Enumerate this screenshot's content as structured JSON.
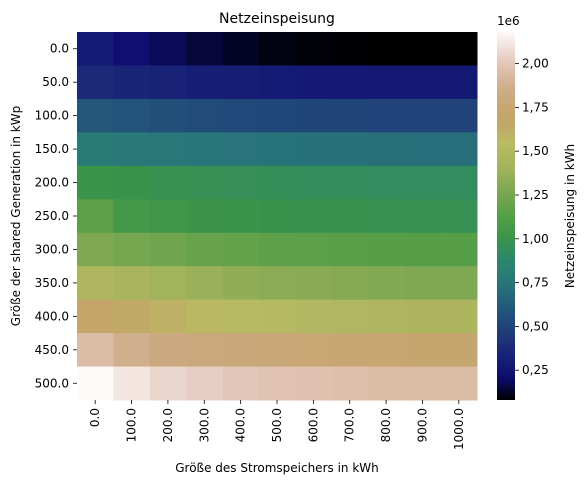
{
  "chart_data": {
    "type": "heatmap",
    "title": "Netzeinspeisung",
    "xlabel": "Größe des Stromspeichers in kWh",
    "ylabel": "Größe der shared Generation in kWp",
    "x_categories": [
      "0.0",
      "100.0",
      "200.0",
      "300.0",
      "400.0",
      "500.0",
      "600.0",
      "700.0",
      "800.0",
      "900.0",
      "1000.0"
    ],
    "y_categories": [
      "0.0",
      "50.0",
      "100.0",
      "150.0",
      "200.0",
      "250.0",
      "300.0",
      "350.0",
      "400.0",
      "450.0",
      "500.0"
    ],
    "values": [
      [
        290000,
        225000,
        180000,
        145000,
        120000,
        100000,
        90000,
        85000,
        80000,
        80000,
        80000
      ],
      [
        370000,
        345000,
        330000,
        310000,
        300000,
        290000,
        285000,
        280000,
        275000,
        275000,
        275000
      ],
      [
        600000,
        580000,
        560000,
        545000,
        530000,
        520000,
        515000,
        510000,
        505000,
        500000,
        500000
      ],
      [
        790000,
        775000,
        760000,
        750000,
        740000,
        735000,
        730000,
        725000,
        720000,
        715000,
        715000
      ],
      [
        1000000,
        990000,
        975000,
        965000,
        955000,
        950000,
        945000,
        940000,
        935000,
        930000,
        930000
      ],
      [
        1150000,
        1050000,
        1030000,
        1010000,
        1000000,
        990000,
        985000,
        980000,
        975000,
        970000,
        970000
      ],
      [
        1280000,
        1250000,
        1230000,
        1200000,
        1180000,
        1160000,
        1150000,
        1140000,
        1130000,
        1130000,
        1130000
      ],
      [
        1480000,
        1450000,
        1400000,
        1370000,
        1340000,
        1320000,
        1310000,
        1300000,
        1290000,
        1280000,
        1280000
      ],
      [
        1690000,
        1640000,
        1600000,
        1560000,
        1540000,
        1520000,
        1500000,
        1490000,
        1480000,
        1470000,
        1470000
      ],
      [
        1950000,
        1870000,
        1820000,
        1790000,
        1770000,
        1760000,
        1750000,
        1740000,
        1730000,
        1720000,
        1720000
      ],
      [
        2180000,
        2110000,
        2060000,
        2030000,
        2000000,
        1980000,
        1970000,
        1960000,
        1950000,
        1940000,
        1940000
      ]
    ],
    "colormap": "gist_earth",
    "vmin": 80000,
    "vmax": 2180000,
    "colorbar": {
      "label": "Netzeinspeisung in kWh",
      "offset_text": "1e6",
      "ticks": [
        0.25,
        0.5,
        0.75,
        1.0,
        1.25,
        1.5,
        1.75,
        2.0
      ],
      "tick_labels": [
        "0,25",
        "0,50",
        "0,75",
        "1,00",
        "1,25",
        "1,50",
        "1,75",
        "2,00"
      ]
    },
    "grid": false
  }
}
